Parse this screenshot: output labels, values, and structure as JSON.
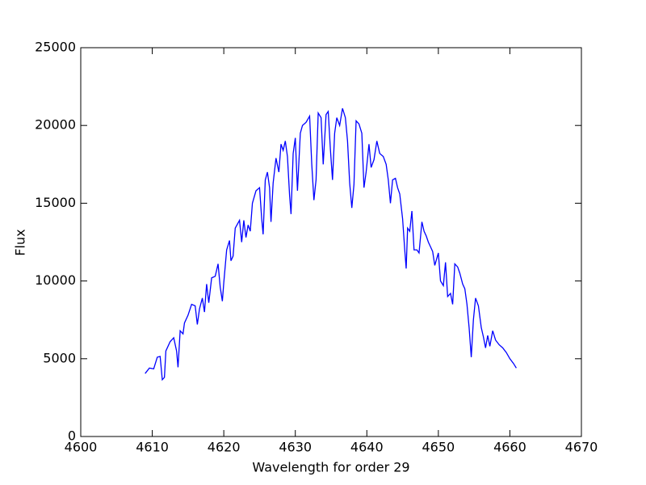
{
  "chart_data": {
    "type": "line",
    "xlabel": "Wavelength for order 29",
    "ylabel": "Flux",
    "color": "#0000ff",
    "xlim": [
      4600,
      4670
    ],
    "xticks": [
      4600,
      4610,
      4620,
      4630,
      4640,
      4650,
      4660,
      4670
    ],
    "ylim": [
      0,
      25000
    ],
    "yticks": [
      0,
      5000,
      10000,
      15000,
      20000,
      25000
    ],
    "x": [
      4609.0,
      4609.6,
      4610.2,
      4610.7,
      4611.1,
      4611.4,
      4611.7,
      4611.9,
      4612.5,
      4613.0,
      4613.4,
      4613.6,
      4613.9,
      4614.3,
      4614.5,
      4615.0,
      4615.5,
      4616.0,
      4616.3,
      4616.6,
      4617.0,
      4617.3,
      4617.6,
      4617.9,
      4618.3,
      4618.8,
      4619.2,
      4619.5,
      4619.8,
      4620.0,
      4620.4,
      4620.8,
      4621.0,
      4621.3,
      4621.6,
      4622.2,
      4622.5,
      4622.8,
      4623.1,
      4623.4,
      4623.7,
      4624.0,
      4624.5,
      4625.0,
      4625.3,
      4625.5,
      4625.8,
      4626.1,
      4626.4,
      4626.6,
      4626.9,
      4627.3,
      4627.7,
      4628.0,
      4628.3,
      4628.6,
      4628.9,
      4629.2,
      4629.4,
      4629.7,
      4630.0,
      4630.3,
      4630.7,
      4631.0,
      4631.5,
      4632.0,
      4632.3,
      4632.6,
      4632.9,
      4633.2,
      4633.6,
      4633.9,
      4634.3,
      4634.6,
      4634.9,
      4635.2,
      4635.5,
      4635.8,
      4636.2,
      4636.6,
      4637.0,
      4637.3,
      4637.6,
      4637.9,
      4638.2,
      4638.5,
      4638.9,
      4639.3,
      4639.6,
      4639.9,
      4640.3,
      4640.6,
      4641.0,
      4641.4,
      4641.8,
      4642.3,
      4642.7,
      4643.0,
      4643.3,
      4643.6,
      4644.0,
      4644.3,
      4644.6,
      4645.0,
      4645.3,
      4645.5,
      4645.7,
      4646.0,
      4646.3,
      4646.6,
      4647.0,
      4647.3,
      4647.7,
      4648.0,
      4648.3,
      4648.6,
      4648.9,
      4649.2,
      4649.5,
      4650.0,
      4650.3,
      4650.7,
      4651.0,
      4651.3,
      4651.7,
      4652.0,
      4652.3,
      4652.7,
      4653.0,
      4653.4,
      4653.7,
      4654.0,
      4654.3,
      4654.6,
      4654.9,
      4655.2,
      4655.6,
      4656.0,
      4656.3,
      4656.6,
      4656.9,
      4657.2,
      4657.6,
      4658.0,
      4658.5,
      4659.0,
      4659.5,
      4660.0,
      4660.5,
      4660.9
    ],
    "values": [
      4050,
      4400,
      4350,
      5100,
      5150,
      3650,
      3800,
      5500,
      6100,
      6350,
      5500,
      4450,
      6800,
      6600,
      7300,
      7800,
      8500,
      8400,
      7200,
      8200,
      8900,
      8000,
      9800,
      8600,
      10200,
      10300,
      11100,
      9600,
      8700,
      9900,
      12000,
      12600,
      11300,
      11600,
      13400,
      13900,
      12500,
      13900,
      12800,
      13600,
      13200,
      15000,
      15800,
      16000,
      14000,
      13000,
      16500,
      17000,
      16000,
      13800,
      16300,
      17900,
      17000,
      18800,
      18400,
      19000,
      18000,
      15500,
      14300,
      18200,
      19200,
      15800,
      19500,
      20000,
      20200,
      20600,
      17500,
      15200,
      16500,
      20800,
      20500,
      17500,
      20700,
      20900,
      18500,
      16500,
      19500,
      20500,
      20000,
      21100,
      20500,
      19000,
      16300,
      14700,
      16200,
      20300,
      20100,
      19500,
      16000,
      17000,
      18800,
      17300,
      17800,
      19000,
      18200,
      18000,
      17500,
      16500,
      15000,
      16500,
      16600,
      16000,
      15600,
      14000,
      12000,
      10800,
      13400,
      13200,
      14500,
      12000,
      12000,
      11800,
      13800,
      13200,
      12900,
      12500,
      12200,
      11900,
      11000,
      11800,
      10000,
      9700,
      11200,
      9000,
      9200,
      8500,
      11100,
      10900,
      10500,
      9800,
      9500,
      8500,
      7000,
      5100,
      7500,
      8900,
      8400,
      7000,
      6400,
      5700,
      6500,
      5800,
      6800,
      6200,
      5900,
      5700,
      5400,
      5000,
      4700,
      4400
    ]
  }
}
